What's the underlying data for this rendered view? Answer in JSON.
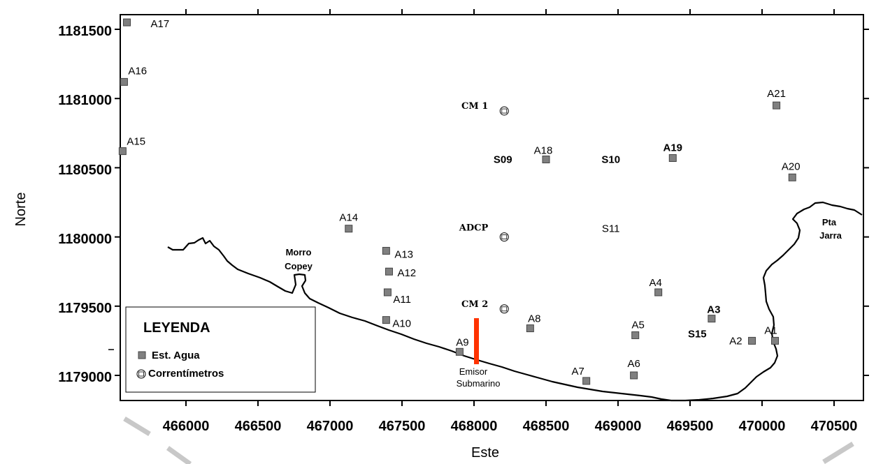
{
  "map": {
    "x_axis_title": "Este",
    "y_axis_title": "Norte",
    "x_ticks": [
      "466000",
      "466500",
      "467000",
      "467500",
      "468000",
      "468500",
      "469000",
      "469500",
      "470000",
      "470500"
    ],
    "y_ticks": [
      "1181500",
      "1181000",
      "1180500",
      "1180000",
      "1179500",
      "1179000"
    ],
    "coast_color": "#000000",
    "pipe_color": "#ff3300",
    "marker_color": "#808080"
  },
  "stations": [
    {
      "id": "A17",
      "label": "A17",
      "e": 465590,
      "n": 1181550
    },
    {
      "id": "A16",
      "label": "A16",
      "e": 465570,
      "n": 1181120
    },
    {
      "id": "A15",
      "label": "A15",
      "e": 465560,
      "n": 1180620
    },
    {
      "id": "A14",
      "label": "A14",
      "e": 467130,
      "n": 1180060
    },
    {
      "id": "A13",
      "label": "A13",
      "e": 467390,
      "n": 1179900
    },
    {
      "id": "A12",
      "label": "A12",
      "e": 467410,
      "n": 1179750
    },
    {
      "id": "A11",
      "label": "A11",
      "e": 467400,
      "n": 1179600
    },
    {
      "id": "A10",
      "label": "A10",
      "e": 467390,
      "n": 1179400
    },
    {
      "id": "A9",
      "label": "A9",
      "e": 467900,
      "n": 1179170
    },
    {
      "id": "A8",
      "label": "A8",
      "e": 468390,
      "n": 1179340
    },
    {
      "id": "A7",
      "label": "A7",
      "e": 468780,
      "n": 1178960
    },
    {
      "id": "A6",
      "label": "A6",
      "e": 469110,
      "n": 1179000
    },
    {
      "id": "A5",
      "label": "A5",
      "e": 469120,
      "n": 1179290
    },
    {
      "id": "A4",
      "label": "A4",
      "e": 469280,
      "n": 1179600
    },
    {
      "id": "A3",
      "label": "A3",
      "e": 469650,
      "n": 1179410
    },
    {
      "id": "A2",
      "label": "A2",
      "e": 469930,
      "n": 1179250
    },
    {
      "id": "A1",
      "label": "A1",
      "e": 470090,
      "n": 1179250
    },
    {
      "id": "A18",
      "label": "A18",
      "e": 468500,
      "n": 1180560
    },
    {
      "id": "A19",
      "label": "A19",
      "e": 469380,
      "n": 1180570
    },
    {
      "id": "A20",
      "label": "A20",
      "e": 470210,
      "n": 1180430
    },
    {
      "id": "A21",
      "label": "A21",
      "e": 470100,
      "n": 1180950
    }
  ],
  "currentmeters": [
    {
      "label": "CM 1",
      "e": 468210,
      "n": 1180910
    },
    {
      "label": "ADCP",
      "e": 468210,
      "n": 1180000
    },
    {
      "label": "CM 2",
      "e": 468210,
      "n": 1179480
    }
  ],
  "sampling_points": [
    {
      "label": "S09",
      "e": 468200,
      "n": 1180560
    },
    {
      "label": "S10",
      "e": 468950,
      "n": 1180560
    },
    {
      "label": "S11",
      "e": 468950,
      "n": 1180060
    },
    {
      "label": "S15",
      "e": 469550,
      "n": 1179300
    }
  ],
  "places": {
    "morro": {
      "line1": "Morro",
      "line2": "Copey"
    },
    "pta": {
      "line1": "Pta",
      "line2": "Jarra"
    },
    "emisor": {
      "line1": "Emisor",
      "line2": "Submarino"
    }
  },
  "legend": {
    "title": "LEYENDA",
    "water": "Est. Agua",
    "currents": "Correntímetros"
  }
}
